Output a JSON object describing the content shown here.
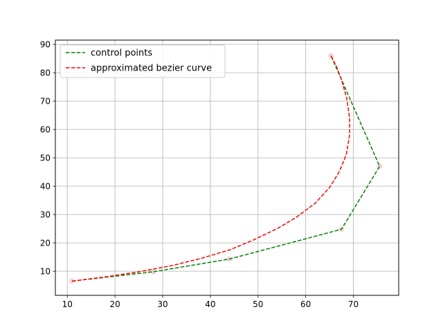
{
  "chart_data": {
    "type": "line",
    "title": "",
    "xlabel": "",
    "ylabel": "",
    "xlim": [
      7.5,
      79.5
    ],
    "ylim": [
      1.5,
      91.5
    ],
    "xticks": [
      10,
      20,
      30,
      40,
      50,
      60,
      70
    ],
    "yticks": [
      10,
      20,
      30,
      40,
      50,
      60,
      70,
      80,
      90
    ],
    "grid": true,
    "legend_position": "top-left",
    "control_point_markers": {
      "color": "#f5d5d5",
      "points": [
        [
          11,
          6.5
        ],
        [
          28,
          9.8
        ],
        [
          44,
          14.3
        ],
        [
          67.5,
          24.8
        ],
        [
          75.5,
          47
        ],
        [
          65.3,
          86
        ]
      ]
    },
    "series": [
      {
        "name": "control points",
        "color": "#008000",
        "dash": "dashed",
        "x": [
          11,
          28,
          44,
          67.5,
          75.5,
          65.3
        ],
        "y": [
          6.5,
          9.8,
          14.3,
          24.8,
          47,
          86
        ]
      },
      {
        "name": "approximated bezier curve",
        "color": "#ff0000",
        "dash": "dashed",
        "x": [
          11,
          18,
          25,
          32,
          38,
          44,
          49,
          54,
          58,
          62,
          65,
          67,
          68.5,
          69.2,
          69.2,
          68.6,
          67.6,
          66.5,
          65.3
        ],
        "y": [
          6.5,
          8,
          9.8,
          12,
          14.5,
          17.5,
          21,
          25,
          29,
          34,
          39.5,
          45,
          51,
          58,
          64,
          71,
          77,
          82,
          86
        ]
      }
    ]
  }
}
